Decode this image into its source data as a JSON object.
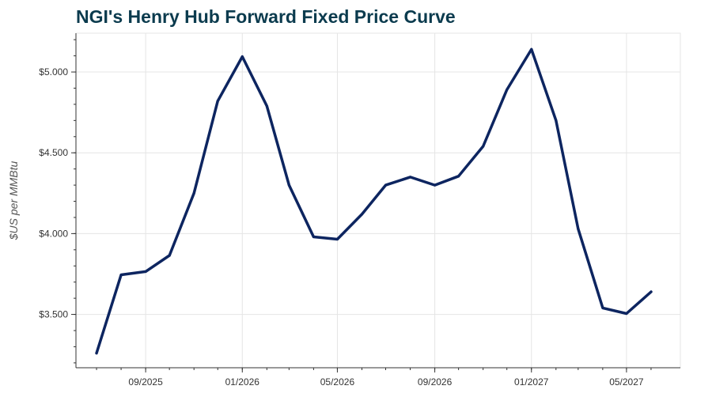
{
  "chart_data": {
    "type": "line",
    "title": "NGI's Henry Hub Forward Fixed Price Curve",
    "xlabel": "",
    "ylabel": "$US per MMBtu",
    "x": [
      "2025-07",
      "2025-08",
      "2025-09",
      "2025-10",
      "2025-11",
      "2025-12",
      "2026-01",
      "2026-02",
      "2026-03",
      "2026-04",
      "2026-05",
      "2026-06",
      "2026-07",
      "2026-08",
      "2026-09",
      "2026-10",
      "2026-11",
      "2026-12",
      "2027-01",
      "2027-02",
      "2027-03",
      "2027-04",
      "2027-05",
      "2027-06"
    ],
    "series": [
      {
        "values": [
          3.26,
          3.745,
          3.765,
          3.865,
          4.25,
          4.82,
          5.095,
          4.79,
          4.3,
          3.98,
          3.965,
          4.12,
          4.3,
          4.35,
          4.3,
          4.355,
          4.54,
          4.89,
          5.14,
          4.7,
          4.03,
          3.54,
          3.505,
          3.64
        ],
        "color": "#0d2560"
      }
    ],
    "xticks": [
      {
        "x": "2025-09",
        "label": "09/2025"
      },
      {
        "x": "2026-01",
        "label": "01/2026"
      },
      {
        "x": "2026-05",
        "label": "05/2026"
      },
      {
        "x": "2026-09",
        "label": "09/2026"
      },
      {
        "x": "2027-01",
        "label": "01/2027"
      },
      {
        "x": "2027-05",
        "label": "05/2027"
      }
    ],
    "yticks": [
      {
        "value": 3.5,
        "label": "$3.500"
      },
      {
        "value": 4.0,
        "label": "$4.000"
      },
      {
        "value": 4.5,
        "label": "$4.500"
      },
      {
        "value": 5.0,
        "label": "$5.000"
      }
    ],
    "xlim": [
      "2025-06-05",
      "2027-07-08"
    ],
    "ylim": [
      3.17,
      5.24
    ],
    "grid": true,
    "colors": {
      "title": "#0b3b4e",
      "line": "#0d2560",
      "grid": "#e5e5e5",
      "axis": "#333333"
    }
  }
}
